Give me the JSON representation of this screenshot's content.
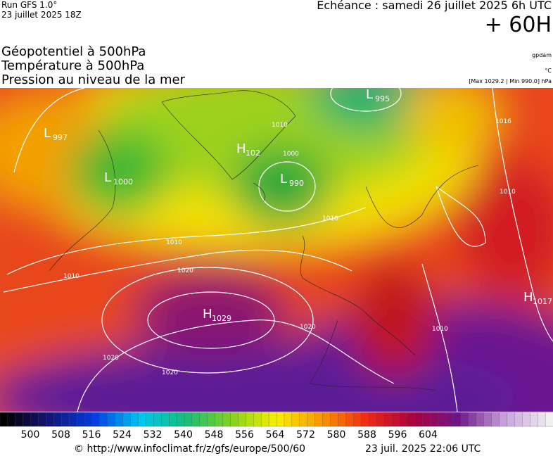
{
  "header": {
    "run": "Run GFS 1.0°",
    "run_date": "23 juillet 2025 18Z",
    "valid_time": "Echéance : samedi 26 juillet 2025 6h UTC",
    "lead": "+ 60H",
    "fields": [
      "Géopotentiel à 500hPa",
      "Température à 500hPa",
      "Pression au niveau de la mer"
    ],
    "units": [
      "gpdam",
      "°C",
      "[Max 1029.2 | Min 990.0] hPa"
    ]
  },
  "map": {
    "pressure_centers": [
      {
        "letter": "L",
        "value": "997"
      },
      {
        "letter": "L",
        "value": "1000"
      },
      {
        "letter": "H",
        "value": "102"
      },
      {
        "letter": "L",
        "value": "990"
      },
      {
        "letter": "L",
        "value": "995"
      },
      {
        "letter": "H",
        "value": "1029"
      },
      {
        "letter": "H",
        "value": "1017"
      }
    ],
    "isobar_labels": [
      "1010",
      "1010",
      "1020",
      "1020",
      "1020",
      "1020",
      "1000",
      "1010",
      "1016",
      "1010",
      "1010",
      "1010"
    ]
  },
  "colorbar": {
    "labels": [
      500,
      508,
      516,
      524,
      532,
      540,
      548,
      556,
      564,
      572,
      580,
      588,
      596,
      604
    ]
  },
  "footer": {
    "url": "© http://www.infoclimat.fr/z/gfs/europe/500/60",
    "generated": "23 juil. 2025 22:06 UTC"
  }
}
